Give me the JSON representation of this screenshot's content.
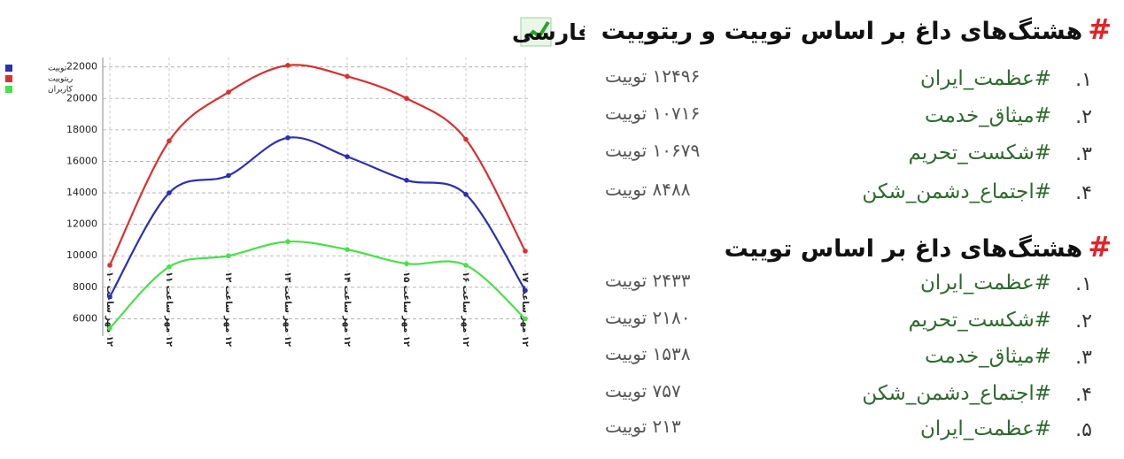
{
  "chart_data": {
    "type": "line",
    "title": "نمودار فعالیت کلی توییتر فارسی",
    "categories": [
      "۱۲ مهر ساعت ۱۰",
      "۱۲ مهر ساعت ۱۱",
      "۱۲ مهر ساعت ۱۲",
      "۱۲ مهر ساعت ۱۳",
      "۱۲ مهر ساعت ۱۴",
      "۱۲ مهر ساعت ۱۵",
      "۱۲ مهر ساعت ۱۶",
      "۱۲ مهر ساعت ۱۷"
    ],
    "series": [
      {
        "name": "توییت",
        "color": "#2b2fb0",
        "values": [
          7400,
          14000,
          15100,
          17500,
          16300,
          14800,
          13900,
          7800
        ]
      },
      {
        "name": "ریتوییت",
        "color": "#d93030",
        "values": [
          9400,
          17300,
          20400,
          22100,
          21400,
          20000,
          17400,
          10300
        ]
      },
      {
        "name": "کاربران",
        "color": "#4ae04a",
        "values": [
          5400,
          9300,
          10000,
          10900,
          10400,
          9500,
          9400,
          6000
        ]
      }
    ],
    "ylim": [
      4900,
      22600
    ],
    "yticks": [
      6000,
      8000,
      10000,
      12000,
      14000,
      16000,
      18000,
      20000,
      22000
    ],
    "grid": true,
    "legend": "top-left"
  },
  "lists": [
    {
      "icon": "#",
      "heading": "هشتگ‌های داغ بر اساس توییت و ریتوییت",
      "items": [
        {
          "number": "۱.",
          "tag": "#عظمت_ایران",
          "count": "۱۲۴۹۶ توییت"
        },
        {
          "number": "۲.",
          "tag": "#میثاق_خدمت",
          "count": "۱۰۷۱۶ توییت"
        },
        {
          "number": "۳.",
          "tag": "#شکست_تحریم",
          "count": "۱۰۶۷۹ توییت"
        },
        {
          "number": "۴.",
          "tag": "#اجتماع_دشمن_شکن",
          "count": "۸۴۸۸ توییت"
        }
      ]
    },
    {
      "icon": "#",
      "heading": "هشتگ‌های داغ بر اساس توییت",
      "items": [
        {
          "number": "۱.",
          "tag": "#عظمت_ایران",
          "count": "۲۴۳۳ توییت"
        },
        {
          "number": "۲.",
          "tag": "#شکست_تحریم",
          "count": "۲۱۸۰ توییت"
        },
        {
          "number": "۳.",
          "tag": "#میثاق_خدمت",
          "count": "۱۵۳۸ توییت"
        },
        {
          "number": "۴.",
          "tag": "#اجتماع_دشمن_شکن",
          "count": "۷۵۷ توییت"
        },
        {
          "number": "۵.",
          "tag": "#عظمت_ایران",
          "count": "۲۱۳ توییت"
        }
      ]
    }
  ]
}
